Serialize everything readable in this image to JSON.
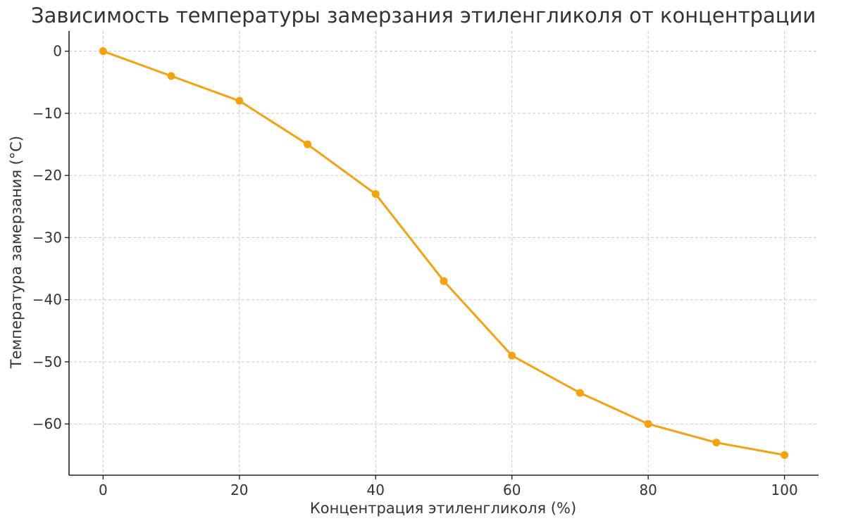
{
  "chart_data": {
    "type": "line",
    "title": "Зависимость температуры замерзания этиленгликоля от концентрации",
    "xlabel": "Концентрация этиленгликоля (%)",
    "ylabel": "Температура замерзания (°C)",
    "x": [
      0,
      10,
      20,
      30,
      40,
      50,
      60,
      70,
      80,
      90,
      100
    ],
    "series": [
      {
        "values": [
          0,
          -4,
          -8,
          -15,
          -23,
          -37,
          -49,
          -55,
          -60,
          -63,
          -65
        ],
        "color": "#f5a20f",
        "marker": "circle"
      }
    ],
    "xlim": [
      -5,
      105
    ],
    "ylim": [
      -68.25,
      3.25
    ],
    "xticks": [
      0,
      20,
      40,
      60,
      80,
      100
    ],
    "yticks": [
      0,
      -10,
      -20,
      -30,
      -40,
      -50,
      -60
    ],
    "xtick_labels": [
      "0",
      "20",
      "40",
      "60",
      "80",
      "100"
    ],
    "ytick_labels": [
      "0",
      "−10",
      "−20",
      "−30",
      "−40",
      "−50",
      "−60"
    ],
    "grid": true,
    "legend": "none"
  }
}
